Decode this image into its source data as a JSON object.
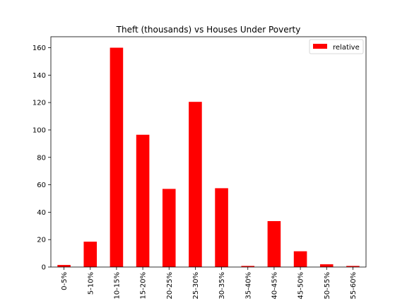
{
  "chart_data": {
    "type": "bar",
    "title": "Theft (thousands) vs Houses Under Poverty",
    "xlabel": "",
    "ylabel": "",
    "categories": [
      "0-5%",
      "5-10%",
      "10-15%",
      "15-20%",
      "20-25%",
      "25-30%",
      "30-35%",
      "35-40%",
      "40-45%",
      "45-50%",
      "50-55%",
      "55-60%"
    ],
    "series": [
      {
        "name": "relative",
        "color": "#ff0000",
        "values": [
          1.5,
          18.5,
          160,
          96.5,
          57,
          120.5,
          57.5,
          0.8,
          33.5,
          11.5,
          2,
          0.8
        ]
      }
    ],
    "ylim": [
      0,
      168
    ],
    "yticks": [
      0,
      20,
      40,
      60,
      80,
      100,
      120,
      140,
      160
    ],
    "grid": false,
    "legend_position": "top-right"
  }
}
